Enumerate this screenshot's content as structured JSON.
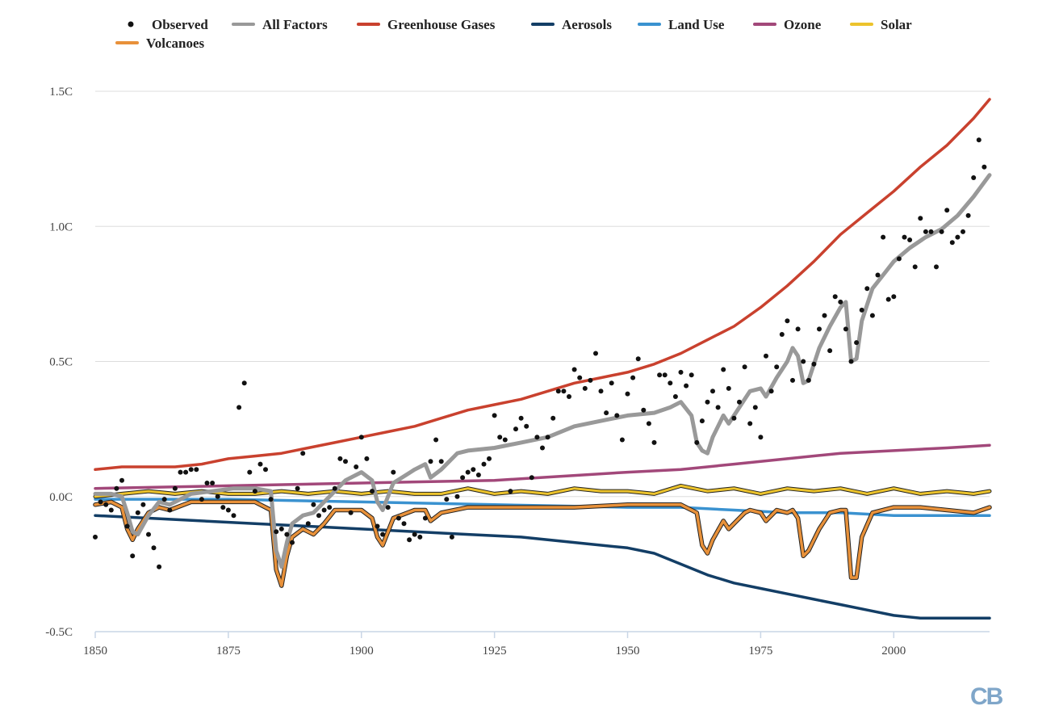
{
  "watermark": "CB",
  "chart_data": {
    "type": "line",
    "title": "",
    "xlabel": "",
    "ylabel": "",
    "xlim": [
      1850,
      2018
    ],
    "ylim": [
      -0.5,
      1.5
    ],
    "y_ticks": [
      1.5,
      1.0,
      0.5,
      0.0,
      -0.5
    ],
    "y_tick_labels": [
      "1.5C",
      "1.0C",
      "0.5C",
      "0.0C",
      "-0.5C"
    ],
    "x_ticks": [
      1850,
      1875,
      1900,
      1925,
      1950,
      1975,
      2000
    ],
    "x_tick_labels": [
      "1850",
      "1875",
      "1900",
      "1925",
      "1950",
      "1975",
      "2000"
    ],
    "grid": "horizontal",
    "legend_position": "top",
    "legend": [
      {
        "name": "Observed",
        "color": "#111111",
        "marker": "dot"
      },
      {
        "name": "All Factors",
        "color": "#999999",
        "marker": "line"
      },
      {
        "name": "Greenhouse Gases",
        "color": "#c9412e",
        "marker": "line"
      },
      {
        "name": "Aerosols",
        "color": "#133e66",
        "marker": "line"
      },
      {
        "name": "Land Use",
        "color": "#3a92d0",
        "marker": "line"
      },
      {
        "name": "Ozone",
        "color": "#a2487a",
        "marker": "line"
      },
      {
        "name": "Solar",
        "color": "#ecc32c",
        "marker": "line"
      },
      {
        "name": "Volcanoes",
        "color": "#e8913a",
        "marker": "line"
      }
    ],
    "observed": {
      "name": "Observed",
      "color": "#111111",
      "points": [
        [
          1850,
          -0.15
        ],
        [
          1851,
          -0.02
        ],
        [
          1852,
          -0.03
        ],
        [
          1853,
          -0.05
        ],
        [
          1854,
          0.03
        ],
        [
          1855,
          0.06
        ],
        [
          1856,
          -0.11
        ],
        [
          1857,
          -0.22
        ],
        [
          1858,
          -0.06
        ],
        [
          1859,
          -0.03
        ],
        [
          1860,
          -0.14
        ],
        [
          1861,
          -0.19
        ],
        [
          1862,
          -0.26
        ],
        [
          1863,
          -0.01
        ],
        [
          1864,
          -0.05
        ],
        [
          1865,
          0.03
        ],
        [
          1866,
          0.09
        ],
        [
          1867,
          0.09
        ],
        [
          1868,
          0.1
        ],
        [
          1869,
          0.1
        ],
        [
          1870,
          -0.01
        ],
        [
          1871,
          0.05
        ],
        [
          1872,
          0.05
        ],
        [
          1873,
          0.0
        ],
        [
          1874,
          -0.04
        ],
        [
          1875,
          -0.05
        ],
        [
          1876,
          -0.07
        ],
        [
          1877,
          0.33
        ],
        [
          1878,
          0.42
        ],
        [
          1879,
          0.09
        ],
        [
          1880,
          0.02
        ],
        [
          1881,
          0.12
        ],
        [
          1882,
          0.1
        ],
        [
          1883,
          -0.01
        ],
        [
          1884,
          -0.13
        ],
        [
          1885,
          -0.12
        ],
        [
          1886,
          -0.14
        ],
        [
          1887,
          -0.17
        ],
        [
          1888,
          0.03
        ],
        [
          1889,
          0.16
        ],
        [
          1890,
          -0.1
        ],
        [
          1891,
          -0.03
        ],
        [
          1892,
          -0.07
        ],
        [
          1893,
          -0.05
        ],
        [
          1894,
          -0.04
        ],
        [
          1895,
          0.03
        ],
        [
          1896,
          0.14
        ],
        [
          1897,
          0.13
        ],
        [
          1898,
          -0.06
        ],
        [
          1899,
          0.11
        ],
        [
          1900,
          0.22
        ],
        [
          1901,
          0.14
        ],
        [
          1902,
          0.02
        ],
        [
          1903,
          -0.11
        ],
        [
          1904,
          -0.14
        ],
        [
          1905,
          -0.04
        ],
        [
          1906,
          0.09
        ],
        [
          1907,
          -0.08
        ],
        [
          1908,
          -0.1
        ],
        [
          1909,
          -0.16
        ],
        [
          1910,
          -0.14
        ],
        [
          1911,
          -0.15
        ],
        [
          1912,
          -0.08
        ],
        [
          1913,
          0.13
        ],
        [
          1914,
          0.21
        ],
        [
          1915,
          0.13
        ],
        [
          1916,
          -0.01
        ],
        [
          1917,
          -0.15
        ],
        [
          1918,
          0.0
        ],
        [
          1919,
          0.07
        ],
        [
          1920,
          0.09
        ],
        [
          1921,
          0.1
        ],
        [
          1922,
          0.08
        ],
        [
          1923,
          0.12
        ],
        [
          1924,
          0.14
        ],
        [
          1925,
          0.3
        ],
        [
          1926,
          0.22
        ],
        [
          1927,
          0.21
        ],
        [
          1928,
          0.02
        ],
        [
          1929,
          0.25
        ],
        [
          1930,
          0.29
        ],
        [
          1931,
          0.26
        ],
        [
          1932,
          0.07
        ],
        [
          1933,
          0.22
        ],
        [
          1934,
          0.18
        ],
        [
          1935,
          0.22
        ],
        [
          1936,
          0.29
        ],
        [
          1937,
          0.39
        ],
        [
          1938,
          0.39
        ],
        [
          1939,
          0.37
        ],
        [
          1940,
          0.47
        ],
        [
          1941,
          0.44
        ],
        [
          1942,
          0.4
        ],
        [
          1943,
          0.43
        ],
        [
          1944,
          0.53
        ],
        [
          1945,
          0.39
        ],
        [
          1946,
          0.31
        ],
        [
          1947,
          0.42
        ],
        [
          1948,
          0.3
        ],
        [
          1949,
          0.21
        ],
        [
          1950,
          0.38
        ],
        [
          1951,
          0.44
        ],
        [
          1952,
          0.51
        ],
        [
          1953,
          0.32
        ],
        [
          1954,
          0.27
        ],
        [
          1955,
          0.2
        ],
        [
          1956,
          0.45
        ],
        [
          1957,
          0.45
        ],
        [
          1958,
          0.42
        ],
        [
          1959,
          0.37
        ],
        [
          1960,
          0.46
        ],
        [
          1961,
          0.41
        ],
        [
          1962,
          0.45
        ],
        [
          1963,
          0.2
        ],
        [
          1964,
          0.28
        ],
        [
          1965,
          0.35
        ],
        [
          1966,
          0.39
        ],
        [
          1967,
          0.33
        ],
        [
          1968,
          0.47
        ],
        [
          1969,
          0.4
        ],
        [
          1970,
          0.29
        ],
        [
          1971,
          0.35
        ],
        [
          1972,
          0.48
        ],
        [
          1973,
          0.27
        ],
        [
          1974,
          0.33
        ],
        [
          1975,
          0.22
        ],
        [
          1976,
          0.52
        ],
        [
          1977,
          0.39
        ],
        [
          1978,
          0.48
        ],
        [
          1979,
          0.6
        ],
        [
          1980,
          0.65
        ],
        [
          1981,
          0.43
        ],
        [
          1982,
          0.62
        ],
        [
          1983,
          0.5
        ],
        [
          1984,
          0.43
        ],
        [
          1985,
          0.49
        ],
        [
          1986,
          0.62
        ],
        [
          1987,
          0.67
        ],
        [
          1988,
          0.54
        ],
        [
          1989,
          0.74
        ],
        [
          1990,
          0.72
        ],
        [
          1991,
          0.62
        ],
        [
          1992,
          0.5
        ],
        [
          1993,
          0.57
        ],
        [
          1994,
          0.69
        ],
        [
          1995,
          0.77
        ],
        [
          1996,
          0.67
        ],
        [
          1997,
          0.82
        ],
        [
          1998,
          0.96
        ],
        [
          1999,
          0.73
        ],
        [
          2000,
          0.74
        ],
        [
          2001,
          0.88
        ],
        [
          2002,
          0.96
        ],
        [
          2003,
          0.95
        ],
        [
          2004,
          0.85
        ],
        [
          2005,
          1.03
        ],
        [
          2006,
          0.98
        ],
        [
          2007,
          0.98
        ],
        [
          2008,
          0.85
        ],
        [
          2009,
          0.98
        ],
        [
          2010,
          1.06
        ],
        [
          2011,
          0.94
        ],
        [
          2012,
          0.96
        ],
        [
          2013,
          0.98
        ],
        [
          2014,
          1.04
        ],
        [
          2015,
          1.18
        ],
        [
          2016,
          1.32
        ],
        [
          2017,
          1.22
        ]
      ]
    },
    "series": [
      {
        "name": "Greenhouse Gases",
        "color": "#c9412e",
        "x": [
          1850,
          1855,
          1860,
          1865,
          1870,
          1875,
          1880,
          1885,
          1890,
          1895,
          1900,
          1905,
          1910,
          1915,
          1920,
          1925,
          1930,
          1935,
          1940,
          1945,
          1950,
          1955,
          1960,
          1965,
          1970,
          1975,
          1980,
          1985,
          1990,
          1995,
          2000,
          2005,
          2010,
          2015,
          2018
        ],
        "values": [
          0.1,
          0.11,
          0.11,
          0.11,
          0.12,
          0.14,
          0.15,
          0.16,
          0.18,
          0.2,
          0.22,
          0.24,
          0.26,
          0.29,
          0.32,
          0.34,
          0.36,
          0.39,
          0.42,
          0.44,
          0.46,
          0.49,
          0.53,
          0.58,
          0.63,
          0.7,
          0.78,
          0.87,
          0.97,
          1.05,
          1.13,
          1.22,
          1.3,
          1.4,
          1.47
        ]
      },
      {
        "name": "Aerosols",
        "color": "#133e66",
        "x": [
          1850,
          1860,
          1870,
          1880,
          1890,
          1900,
          1910,
          1920,
          1930,
          1940,
          1950,
          1955,
          1960,
          1965,
          1970,
          1975,
          1980,
          1985,
          1990,
          1995,
          2000,
          2005,
          2010,
          2015,
          2018
        ],
        "values": [
          -0.07,
          -0.08,
          -0.09,
          -0.1,
          -0.11,
          -0.12,
          -0.13,
          -0.14,
          -0.15,
          -0.17,
          -0.19,
          -0.21,
          -0.25,
          -0.29,
          -0.32,
          -0.34,
          -0.36,
          -0.38,
          -0.4,
          -0.42,
          -0.44,
          -0.45,
          -0.45,
          -0.45,
          -0.45
        ]
      },
      {
        "name": "Land Use",
        "color": "#3a92d0",
        "x": [
          1850,
          1875,
          1900,
          1925,
          1950,
          1960,
          1970,
          1980,
          1990,
          2000,
          2010,
          2018
        ],
        "values": [
          -0.01,
          -0.01,
          -0.02,
          -0.03,
          -0.04,
          -0.04,
          -0.05,
          -0.06,
          -0.06,
          -0.07,
          -0.07,
          -0.07
        ]
      },
      {
        "name": "Ozone",
        "color": "#a2487a",
        "x": [
          1850,
          1875,
          1900,
          1925,
          1950,
          1960,
          1970,
          1980,
          1990,
          2000,
          2010,
          2018
        ],
        "values": [
          0.03,
          0.04,
          0.05,
          0.06,
          0.09,
          0.1,
          0.12,
          0.14,
          0.16,
          0.17,
          0.18,
          0.19
        ]
      },
      {
        "name": "Solar",
        "color": "#ecc32c",
        "x": [
          1850,
          1855,
          1860,
          1865,
          1870,
          1875,
          1880,
          1885,
          1890,
          1895,
          1900,
          1905,
          1910,
          1915,
          1920,
          1925,
          1930,
          1935,
          1940,
          1945,
          1950,
          1955,
          1960,
          1965,
          1970,
          1975,
          1980,
          1985,
          1990,
          1995,
          2000,
          2005,
          2010,
          2015,
          2018
        ],
        "values": [
          0.0,
          0.01,
          0.02,
          0.01,
          0.02,
          0.01,
          0.01,
          0.02,
          0.01,
          0.02,
          0.01,
          0.02,
          0.01,
          0.01,
          0.03,
          0.01,
          0.02,
          0.01,
          0.03,
          0.02,
          0.02,
          0.01,
          0.04,
          0.02,
          0.03,
          0.01,
          0.03,
          0.02,
          0.03,
          0.01,
          0.03,
          0.01,
          0.02,
          0.01,
          0.02
        ]
      },
      {
        "name": "Volcanoes",
        "color": "#e8913a",
        "x": [
          1850,
          1853,
          1855,
          1856,
          1857,
          1858,
          1860,
          1862,
          1864,
          1868,
          1872,
          1876,
          1880,
          1883,
          1884,
          1885,
          1886,
          1887,
          1889,
          1891,
          1893,
          1895,
          1897,
          1900,
          1902,
          1903,
          1904,
          1906,
          1910,
          1912,
          1913,
          1915,
          1920,
          1930,
          1940,
          1950,
          1955,
          1960,
          1963,
          1964,
          1965,
          1966,
          1968,
          1969,
          1970,
          1972,
          1973,
          1975,
          1976,
          1978,
          1980,
          1981,
          1982,
          1983,
          1984,
          1986,
          1988,
          1990,
          1991,
          1992,
          1993,
          1994,
          1996,
          2000,
          2005,
          2010,
          2015,
          2018
        ],
        "values": [
          -0.03,
          -0.02,
          -0.04,
          -0.12,
          -0.16,
          -0.12,
          -0.06,
          -0.04,
          -0.05,
          -0.02,
          -0.02,
          -0.02,
          -0.02,
          -0.05,
          -0.27,
          -0.33,
          -0.22,
          -0.15,
          -0.12,
          -0.14,
          -0.1,
          -0.05,
          -0.05,
          -0.05,
          -0.08,
          -0.15,
          -0.18,
          -0.08,
          -0.05,
          -0.05,
          -0.09,
          -0.06,
          -0.04,
          -0.04,
          -0.04,
          -0.03,
          -0.03,
          -0.03,
          -0.06,
          -0.18,
          -0.21,
          -0.16,
          -0.09,
          -0.12,
          -0.1,
          -0.06,
          -0.05,
          -0.06,
          -0.09,
          -0.05,
          -0.06,
          -0.05,
          -0.08,
          -0.22,
          -0.2,
          -0.12,
          -0.06,
          -0.05,
          -0.05,
          -0.3,
          -0.3,
          -0.15,
          -0.06,
          -0.04,
          -0.04,
          -0.05,
          -0.06,
          -0.04
        ]
      },
      {
        "name": "All Factors",
        "color": "#999999",
        "x": [
          1850,
          1853,
          1855,
          1856,
          1857,
          1858,
          1860,
          1862,
          1864,
          1868,
          1872,
          1876,
          1880,
          1883,
          1884,
          1885,
          1886,
          1887,
          1889,
          1891,
          1893,
          1895,
          1897,
          1900,
          1902,
          1903,
          1904,
          1906,
          1910,
          1912,
          1913,
          1915,
          1918,
          1920,
          1925,
          1930,
          1935,
          1940,
          1945,
          1950,
          1955,
          1958,
          1960,
          1962,
          1963,
          1964,
          1965,
          1966,
          1968,
          1969,
          1970,
          1972,
          1973,
          1975,
          1976,
          1978,
          1980,
          1981,
          1982,
          1983,
          1984,
          1986,
          1988,
          1990,
          1991,
          1992,
          1993,
          1994,
          1996,
          1998,
          2000,
          2003,
          2006,
          2009,
          2012,
          2015,
          2018
        ],
        "values": [
          0.01,
          0.01,
          0.0,
          -0.06,
          -0.13,
          -0.14,
          -0.07,
          -0.02,
          -0.03,
          0.01,
          0.02,
          0.03,
          0.03,
          0.02,
          -0.2,
          -0.26,
          -0.17,
          -0.1,
          -0.07,
          -0.06,
          -0.02,
          0.02,
          0.06,
          0.09,
          0.06,
          -0.02,
          -0.05,
          0.05,
          0.1,
          0.12,
          0.07,
          0.1,
          0.16,
          0.17,
          0.18,
          0.2,
          0.22,
          0.26,
          0.28,
          0.3,
          0.31,
          0.33,
          0.35,
          0.3,
          0.2,
          0.17,
          0.16,
          0.22,
          0.3,
          0.27,
          0.3,
          0.36,
          0.39,
          0.4,
          0.37,
          0.44,
          0.5,
          0.55,
          0.52,
          0.42,
          0.43,
          0.55,
          0.63,
          0.7,
          0.72,
          0.5,
          0.51,
          0.65,
          0.77,
          0.82,
          0.87,
          0.92,
          0.96,
          0.99,
          1.04,
          1.11,
          1.19
        ]
      }
    ]
  }
}
